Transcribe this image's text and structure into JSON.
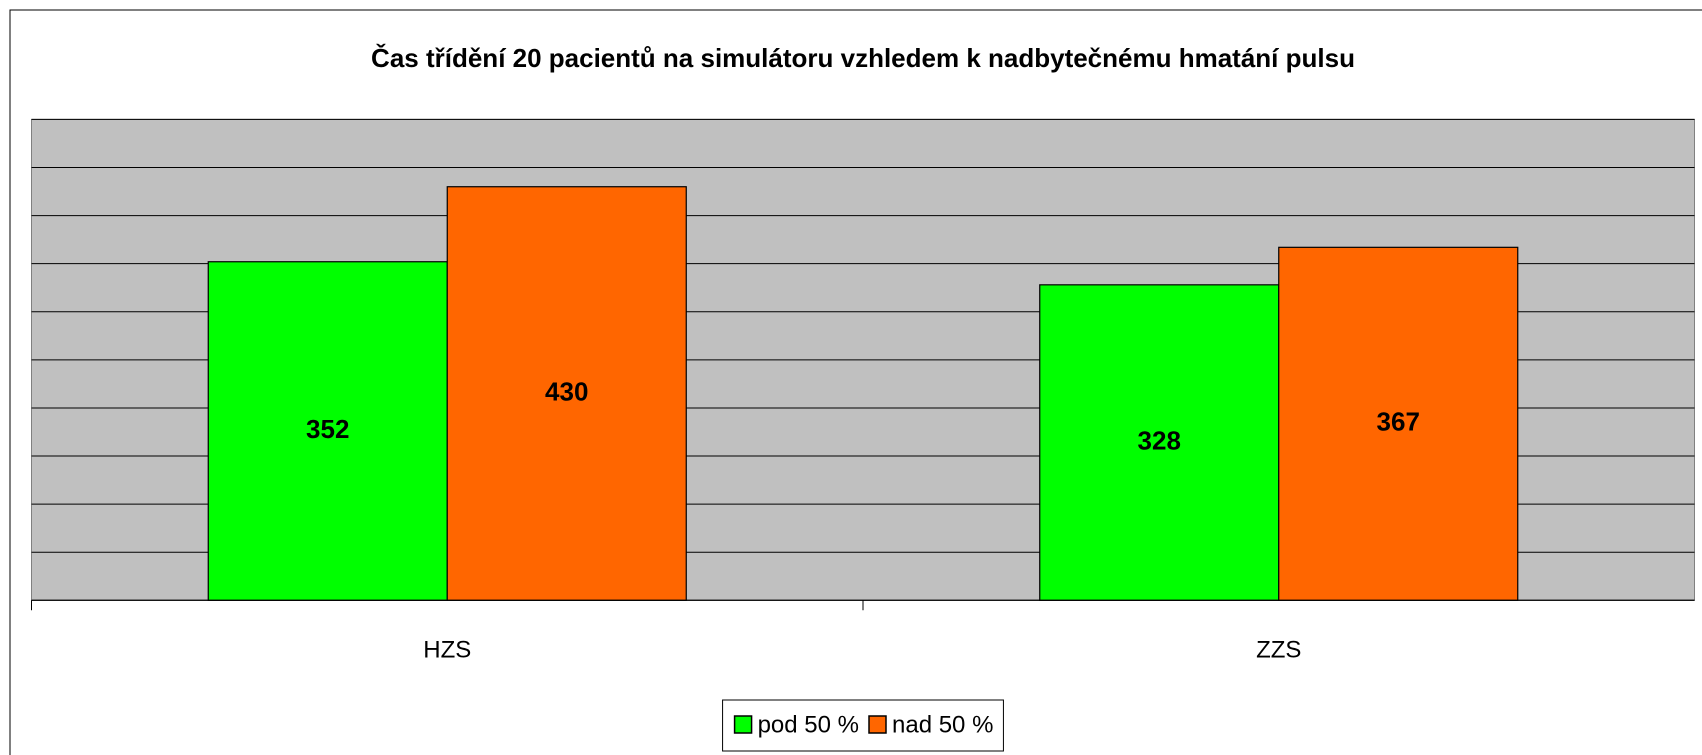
{
  "chart_data": {
    "type": "bar",
    "title": "Čas třídění 20 pacientů na simulátoru vzhledem k nadbytečnému hmatání pulsu",
    "categories": [
      "HZS",
      "ZZS"
    ],
    "series": [
      {
        "name": "pod 50 %",
        "color": "#00ff00",
        "values": [
          352,
          328
        ]
      },
      {
        "name": "nad 50 %",
        "color": "#ff6600",
        "values": [
          430,
          367
        ]
      }
    ],
    "ylim": [
      0,
      500
    ],
    "yticks": [
      0,
      50,
      100,
      150,
      200,
      250,
      300,
      350,
      400,
      450,
      500
    ],
    "grid": true,
    "legend": "bottom"
  }
}
